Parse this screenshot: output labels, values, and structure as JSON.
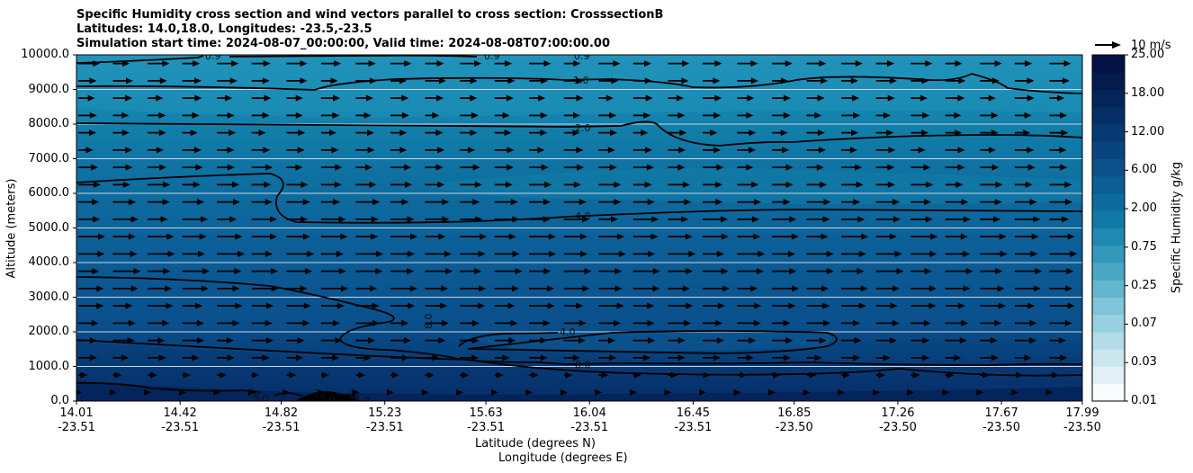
{
  "title_lines": [
    "Specific Humidity cross section and wind vectors parallel to cross section: CrosssectionB",
    "Latitudes: 14.0,18.0, Longitudes: -23.5,-23.5",
    "Simulation start time: 2024-08-07_00:00:00, Valid time: 2024-08-08T07:00:00.00"
  ],
  "chart_data": {
    "type": "heatmap",
    "title": "Specific Humidity cross section and wind vectors parallel to cross section: CrosssectionB",
    "xlabel": "Latitude (degrees N)",
    "xlabel2": "Longitude (degrees E)",
    "ylabel": "Altitude (meters)",
    "ylim": [
      0,
      10000
    ],
    "y_ticks": [
      "0.0",
      "1000.0",
      "2000.0",
      "3000.0",
      "4000.0",
      "5000.0",
      "6000.0",
      "7000.0",
      "8000.0",
      "9000.0",
      "10000.0"
    ],
    "x_ticks": [
      {
        "lat": "14.01",
        "lon": "-23.51"
      },
      {
        "lat": "14.42",
        "lon": "-23.51"
      },
      {
        "lat": "14.82",
        "lon": "-23.51"
      },
      {
        "lat": "15.23",
        "lon": "-23.51"
      },
      {
        "lat": "15.63",
        "lon": "-23.51"
      },
      {
        "lat": "16.04",
        "lon": "-23.51"
      },
      {
        "lat": "16.45",
        "lon": "-23.51"
      },
      {
        "lat": "16.85",
        "lon": "-23.50"
      },
      {
        "lat": "17.26",
        "lon": "-23.50"
      },
      {
        "lat": "17.67",
        "lon": "-23.50"
      },
      {
        "lat": "17.99",
        "lon": "-23.50"
      }
    ],
    "colorbar": {
      "label": "Specific Humidity g/kg",
      "ticks": [
        "0.01",
        "0.03",
        "0.07",
        "0.25",
        "0.75",
        "2.00",
        "6.00",
        "12.00",
        "18.00",
        "25.00"
      ],
      "colors": [
        "#f7fcfd",
        "#e0f0f4",
        "#cbe7ee",
        "#b3dce8",
        "#97d0e0",
        "#7fc4d8",
        "#63b6cf",
        "#49a7c5",
        "#3398bb",
        "#2089b1",
        "#1279a6",
        "#0e6b9e",
        "#0b5e96",
        "#0a518c",
        "#08457f",
        "#073a72",
        "#062f65",
        "#05245a",
        "#041b4e",
        "#031244"
      ]
    },
    "wind_reference": {
      "label": "10 m/s",
      "value": 10
    },
    "contour_labels": [
      "0.9",
      "0.9",
      "0.9",
      "1.0",
      "2.0",
      "4.0",
      "4.0",
      "8.0",
      "8.0",
      "16.0",
      "16.0",
      "16.0"
    ],
    "contour_levels": [
      0.9,
      1.0,
      2.0,
      4.0,
      8.0,
      16.0
    ],
    "wind_u_profile": [
      {
        "altitude": 250,
        "u": 1
      },
      {
        "altitude": 750,
        "u": 3
      },
      {
        "altitude": 1250,
        "u": 6
      },
      {
        "altitude": 1750,
        "u": 7
      },
      {
        "altitude": 2500,
        "u": 8
      },
      {
        "altitude": 3500,
        "u": 9
      },
      {
        "altitude": 4500,
        "u": 9
      },
      {
        "altitude": 5500,
        "u": 8
      },
      {
        "altitude": 6500,
        "u": 7
      },
      {
        "altitude": 7500,
        "u": 6
      },
      {
        "altitude": 8500,
        "u": 6
      },
      {
        "altitude": 9500,
        "u": 7
      }
    ]
  }
}
